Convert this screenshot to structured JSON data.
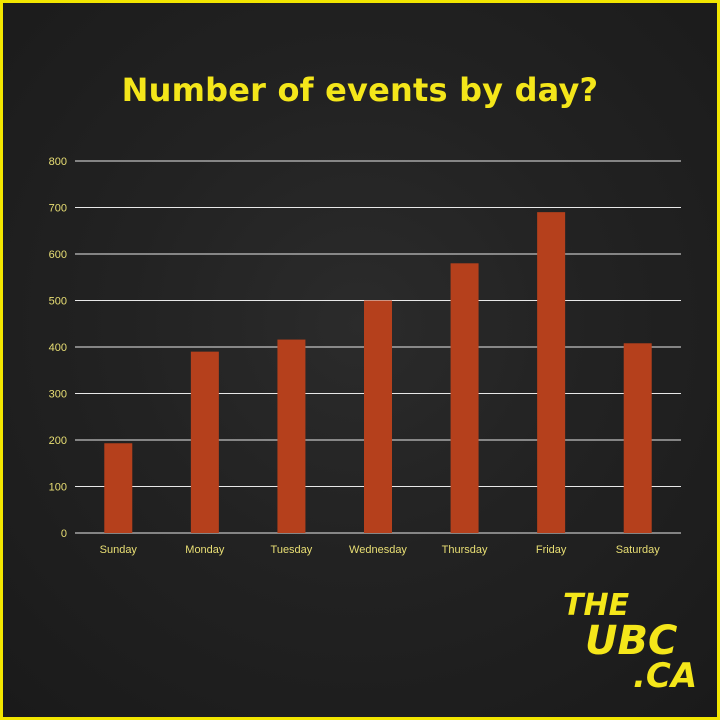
{
  "chart_data": {
    "type": "bar",
    "title": "Number of events by day?",
    "categories": [
      "Sunday",
      "Monday",
      "Tuesday",
      "Wednesday",
      "Thursday",
      "Friday",
      "Saturday"
    ],
    "values": [
      193,
      390,
      416,
      500,
      580,
      690,
      408
    ],
    "ylim": [
      0,
      800
    ],
    "yticks": [
      0,
      100,
      200,
      300,
      400,
      500,
      600,
      700,
      800
    ],
    "xlabel": "",
    "ylabel": "",
    "grid": true,
    "colors": {
      "bar": "#b5401c",
      "title": "#f4e61a",
      "ticks": "#e9df74",
      "grid": "#e8e8e8",
      "border": "#f2e600"
    }
  },
  "logo": {
    "line1": "THE",
    "line2": "UBC",
    "line3": ".CA"
  }
}
